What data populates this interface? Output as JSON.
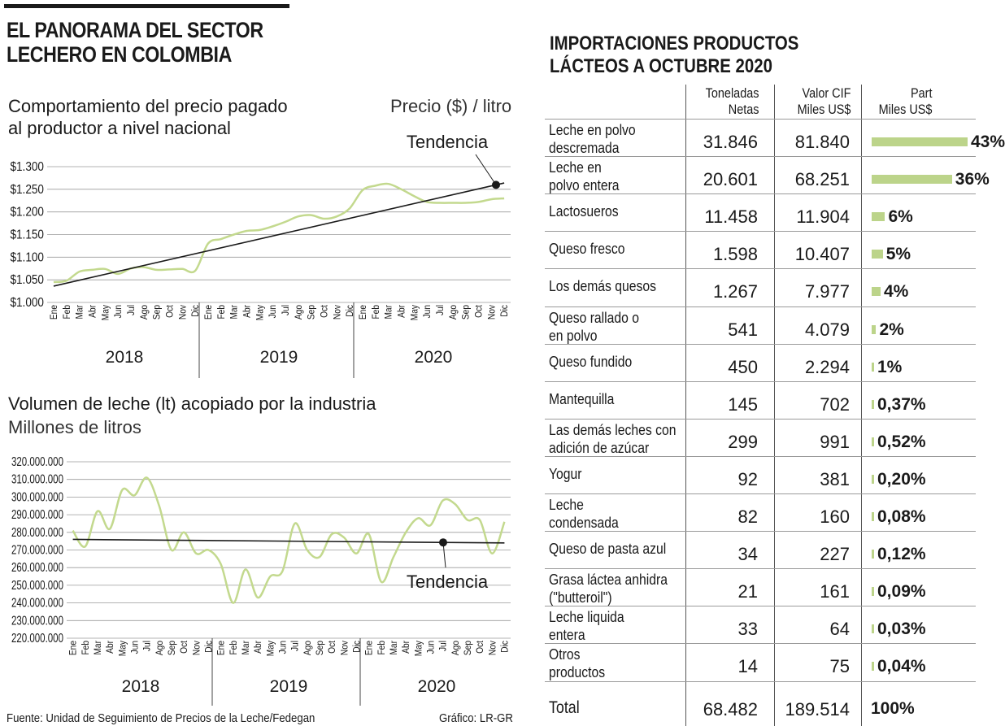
{
  "header": {
    "title_line1": "EL PANORAMA DEL SECTOR",
    "title_line2": "LECHERO EN COLOMBIA"
  },
  "price_chart": {
    "title_line1": "Comportamiento del precio pagado",
    "title_line2": "al productor a nivel nacional",
    "unit_label": "Precio ($) / litro",
    "trend_label": "Tendencia"
  },
  "volume_chart": {
    "title": "Volumen de leche (lt) acopiado por la industria",
    "subtitle": "Millones de litros",
    "trend_label": "Tendencia"
  },
  "chart_data": [
    {
      "type": "line",
      "title": "Comportamiento del precio pagado al productor a nivel nacional",
      "ylabel": "Precio ($) / litro",
      "ylim": [
        1000,
        1300
      ],
      "y_ticks": [
        "$1.300",
        "$1.250",
        "$1.200",
        "$1.150",
        "$1.100",
        "$1.050",
        "$1.000"
      ],
      "y_tick_values": [
        1300,
        1250,
        1200,
        1150,
        1100,
        1050,
        1000
      ],
      "month_labels": [
        "Ene",
        "Feb",
        "Mar",
        "Abr",
        "May",
        "Jun",
        "Jul",
        "Ago",
        "Sep",
        "Oct",
        "Nov",
        "Dic"
      ],
      "years": [
        "2018",
        "2019",
        "2020"
      ],
      "series": [
        {
          "name": "Precio",
          "values": [
            1045,
            1048,
            1068,
            1072,
            1074,
            1063,
            1075,
            1078,
            1072,
            1073,
            1074,
            1070,
            1130,
            1140,
            1150,
            1158,
            1160,
            1168,
            1178,
            1190,
            1193,
            1185,
            1190,
            1208,
            1248,
            1258,
            1262,
            1250,
            1235,
            1222,
            1220,
            1220,
            1220,
            1222,
            1228,
            1230
          ]
        },
        {
          "name": "Tendencia",
          "start": 1036,
          "end": 1264
        }
      ]
    },
    {
      "type": "line",
      "title": "Volumen de leche (lt) acopiado por la industria",
      "ylabel": "Millones de litros",
      "ylim": [
        220000000,
        320000000
      ],
      "y_ticks": [
        "320.000.000",
        "310.000.000",
        "300.000.000",
        "290.000.000",
        "280.000.000",
        "270.000.000",
        "260.000.000",
        "250.000.000",
        "240.000.000",
        "230.000.000",
        "220.000.000"
      ],
      "y_tick_values": [
        320000000,
        310000000,
        300000000,
        290000000,
        280000000,
        270000000,
        260000000,
        250000000,
        240000000,
        230000000,
        220000000
      ],
      "month_labels": [
        "Ene",
        "Feb",
        "Mar",
        "Abr",
        "May",
        "Jun",
        "Jul",
        "Ago",
        "Sep",
        "Oct",
        "Nov",
        "Dic"
      ],
      "years": [
        "2018",
        "2019",
        "2020"
      ],
      "series": [
        {
          "name": "Volumen",
          "values": [
            281000000,
            272000000,
            292000000,
            282000000,
            304000000,
            301000000,
            311000000,
            295000000,
            270000000,
            280000000,
            268000000,
            270000000,
            262000000,
            240000000,
            259000000,
            243000000,
            255000000,
            258000000,
            285000000,
            270000000,
            266000000,
            279000000,
            277000000,
            268000000,
            279000000,
            252000000,
            266000000,
            280000000,
            288000000,
            284000000,
            298000000,
            296000000,
            287000000,
            287000000,
            268000000,
            286000000
          ]
        },
        {
          "name": "Tendencia",
          "start": 276000000,
          "end": 274000000
        }
      ]
    }
  ],
  "table": {
    "title_line1": "IMPORTACIONES PRODUCTOS",
    "title_line2": "LÁCTEOS A OCTUBRE 2020",
    "col1_line1": "Toneladas",
    "col1_line2": "Netas",
    "col2_line1": "Valor CIF",
    "col2_line2": "Miles US$",
    "col3_line1": "Part",
    "col3_line2": "Miles US$",
    "rows": [
      {
        "name1": "Leche en polvo",
        "name2": "descremada",
        "tons": "31.846",
        "cif": "81.840",
        "pct": "43%",
        "share": 43
      },
      {
        "name1": "Leche en",
        "name2": "polvo entera",
        "tons": "20.601",
        "cif": "68.251",
        "pct": "36%",
        "share": 36
      },
      {
        "name1": "Lactosueros",
        "name2": "",
        "tons": "11.458",
        "cif": "11.904",
        "pct": "6%",
        "share": 6
      },
      {
        "name1": "Queso fresco",
        "name2": "",
        "tons": "1.598",
        "cif": "10.407",
        "pct": "5%",
        "share": 5
      },
      {
        "name1": "Los demás quesos",
        "name2": "",
        "tons": "1.267",
        "cif": "7.977",
        "pct": "4%",
        "share": 4
      },
      {
        "name1": "Queso rallado o",
        "name2": "en polvo",
        "tons": "541",
        "cif": "4.079",
        "pct": "2%",
        "share": 2
      },
      {
        "name1": "Queso fundido",
        "name2": "",
        "tons": "450",
        "cif": "2.294",
        "pct": "1%",
        "share": 1
      },
      {
        "name1": "Mantequilla",
        "name2": "",
        "tons": "145",
        "cif": "702",
        "pct": "0,37%",
        "share": 0.37
      },
      {
        "name1": "Las demás leches con",
        "name2": "adición de azúcar",
        "tons": "299",
        "cif": "991",
        "pct": "0,52%",
        "share": 0.52
      },
      {
        "name1": "Yogur",
        "name2": "",
        "tons": "92",
        "cif": "381",
        "pct": "0,20%",
        "share": 0.2
      },
      {
        "name1": "Leche",
        "name2": "condensada",
        "tons": "82",
        "cif": "160",
        "pct": "0,08%",
        "share": 0.08
      },
      {
        "name1": "Queso de pasta azul",
        "name2": "",
        "tons": "34",
        "cif": "227",
        "pct": "0,12%",
        "share": 0.12
      },
      {
        "name1": "Grasa láctea anhidra",
        "name2": "(\"butteroil\")",
        "tons": "21",
        "cif": "161",
        "pct": "0,09%",
        "share": 0.09
      },
      {
        "name1": "Leche liquida",
        "name2": "entera",
        "tons": "33",
        "cif": "64",
        "pct": "0,03%",
        "share": 0.03
      },
      {
        "name1": "Otros",
        "name2": "productos",
        "tons": "14",
        "cif": "75",
        "pct": "0,04%",
        "share": 0.04
      }
    ],
    "total": {
      "label": "Total",
      "tons": "68.482",
      "cif": "189.514",
      "pct": "100%"
    }
  },
  "footer": {
    "source": "Fuente: Unidad de Seguimiento de Precios de la Leche/Fedegan",
    "credit": "Gráfico: LR-GR"
  },
  "colors": {
    "line": "#c3d98e",
    "bar": "#bcd48a",
    "ink": "#1a1a1a"
  }
}
